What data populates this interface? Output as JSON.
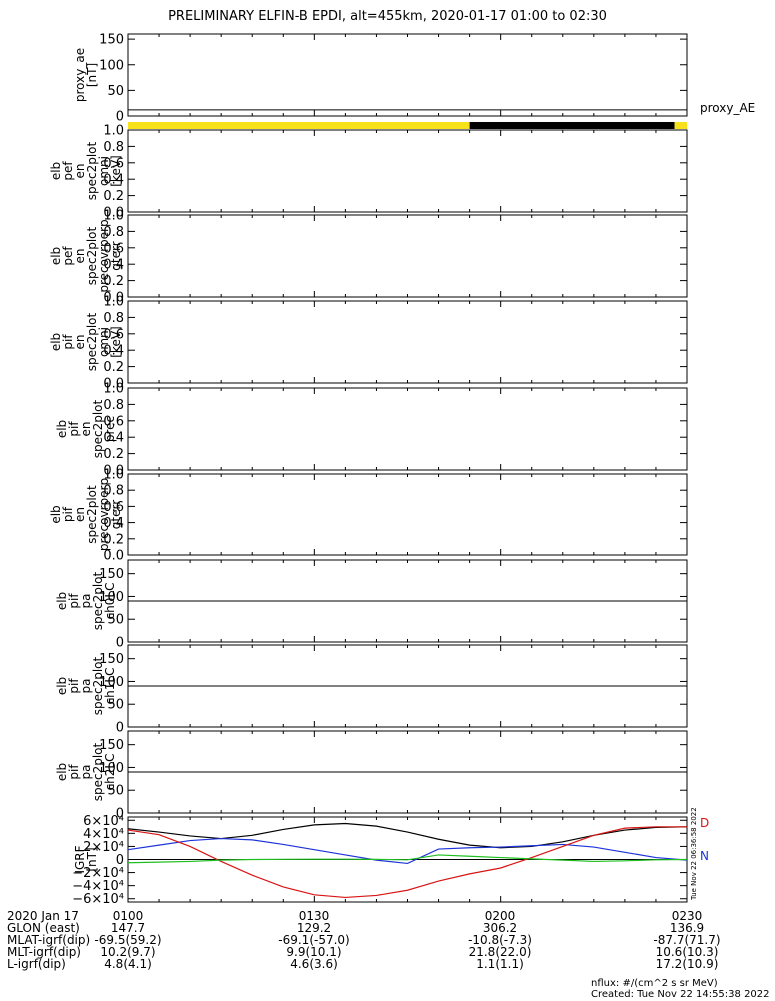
{
  "title": "PRELIMINARY ELFIN-B EPDI, alt=455km, 2020-01-17 01:00 to 02:30",
  "panels": [
    {
      "id": "proxy_ae",
      "ylabel": [
        "proxy_ae",
        "[nT]"
      ],
      "ticks": [
        "150",
        "100",
        "50",
        "0"
      ],
      "right_label": "proxy_AE"
    },
    {
      "id": "pef_omni",
      "ylabel": [
        "elb",
        "pef",
        "en",
        "spec2plot",
        "omni",
        "[keV]"
      ],
      "ticks": [
        "1.0",
        "0.8",
        "0.6",
        "0.4",
        "0.2",
        "0.0"
      ]
    },
    {
      "id": "pef_precovrperp",
      "ylabel": [
        "elb",
        "pef",
        "en",
        "spec2plot",
        "precovrperp",
        "gterr"
      ],
      "ticks": [
        "1.0",
        "0.8",
        "0.6",
        "0.4",
        "0.2",
        "0.0"
      ]
    },
    {
      "id": "pif_omni",
      "ylabel": [
        "elb",
        "pif",
        "en",
        "spec2plot",
        "omni",
        "[keV]"
      ],
      "ticks": [
        "1.0",
        "0.8",
        "0.6",
        "0.4",
        "0.2",
        "0.0"
      ]
    },
    {
      "id": "pif_prec",
      "ylabel": [
        "elb",
        "pif",
        "en",
        "spec2plot",
        "prec"
      ],
      "ticks": [
        "1.0",
        "0.8",
        "0.6",
        "0.4",
        "0.2",
        "0.0"
      ]
    },
    {
      "id": "pif_precovrperp",
      "ylabel": [
        "elb",
        "pif",
        "en",
        "spec2plot",
        "precovrperp",
        "gterr"
      ],
      "ticks": [
        "1.0",
        "0.8",
        "0.6",
        "0.4",
        "0.2",
        "0.0"
      ]
    },
    {
      "id": "pa_ch0",
      "ylabel": [
        "elb",
        "pif",
        "pa",
        "spec2plot",
        "ch0LC"
      ],
      "ticks": [
        "150",
        "100",
        "50",
        "0"
      ]
    },
    {
      "id": "pa_ch1",
      "ylabel": [
        "elb",
        "pif",
        "pa",
        "spec2plot",
        "ch1LC"
      ],
      "ticks": [
        "150",
        "100",
        "50",
        "0"
      ]
    },
    {
      "id": "pa_ch2",
      "ylabel": [
        "elb",
        "pif",
        "pa",
        "spec2plot",
        "ch2LC"
      ],
      "ticks": [
        "150",
        "100",
        "50",
        "0"
      ]
    },
    {
      "id": "igrf",
      "ylabel": [
        "IGRF",
        "[nT]"
      ],
      "ticks": [
        "6×10⁴",
        "4×10⁴",
        "2×10⁴",
        "0",
        "−2×10⁴",
        "−4×10⁴",
        "−6×10⁴"
      ],
      "right_labels": [
        "D",
        "N"
      ],
      "side_stamp": "Tue Nov 22 06:36:58 2022"
    }
  ],
  "colors": {
    "black": "#000000",
    "yellow": "#f7e11b",
    "red": "#d81414",
    "blue": "#1c33d8",
    "green": "#1fbf1f"
  },
  "chart_data": [
    {
      "type": "line",
      "panel": "proxy_ae",
      "ylim": [
        0,
        160
      ],
      "x": [
        "01:00",
        "02:30"
      ],
      "values": [
        12,
        12
      ],
      "flag_bar": [
        {
          "from": "01:00",
          "to": "01:55",
          "color": "yellow"
        },
        {
          "from": "01:55",
          "to": "02:28",
          "color": "black"
        },
        {
          "from": "02:28",
          "to": "02:30",
          "color": "yellow"
        }
      ]
    },
    {
      "type": "line",
      "panel": "pa_ch0",
      "ylim": [
        0,
        180
      ],
      "x": [
        "01:00",
        "02:30"
      ],
      "values": [
        90,
        90
      ]
    },
    {
      "type": "line",
      "panel": "pa_ch1",
      "ylim": [
        0,
        180
      ],
      "x": [
        "01:00",
        "02:30"
      ],
      "values": [
        90,
        90
      ]
    },
    {
      "type": "line",
      "panel": "pa_ch2",
      "ylim": [
        0,
        180
      ],
      "x": [
        "01:00",
        "02:30"
      ],
      "values": [
        90,
        90
      ]
    },
    {
      "type": "line",
      "panel": "igrf",
      "ylim": [
        -65000,
        65000
      ],
      "x": [
        0,
        5,
        10,
        15,
        20,
        25,
        30,
        35,
        40,
        45,
        50,
        55,
        60,
        65,
        70,
        75,
        80,
        85,
        90
      ],
      "series": [
        {
          "color": "black",
          "values": [
            47000,
            42000,
            36000,
            32000,
            37000,
            46000,
            53000,
            55000,
            51000,
            42000,
            31000,
            22000,
            18000,
            20000,
            27000,
            37000,
            45000,
            49000,
            50000
          ]
        },
        {
          "color": "blue",
          "values": [
            15000,
            22000,
            29000,
            32000,
            30000,
            23000,
            15000,
            7000,
            -1000,
            -6000,
            16000,
            18000,
            19000,
            21000,
            23000,
            19000,
            11000,
            3000,
            -1000
          ]
        },
        {
          "color": "red",
          "values": [
            45000,
            38000,
            20000,
            -3000,
            -24000,
            -42000,
            -54000,
            -58000,
            -55000,
            -47000,
            -33000,
            -22000,
            -13000,
            3000,
            20000,
            37000,
            48000,
            50000,
            50000
          ]
        },
        {
          "color": "green",
          "values": [
            -5000,
            -4000,
            -3000,
            -1000,
            0,
            300,
            500,
            500,
            200,
            -500,
            7000,
            5000,
            3000,
            1000,
            -1000,
            -3000,
            -2000,
            -500,
            0
          ]
        }
      ]
    }
  ],
  "xaxis": {
    "labels": [
      "2020 Jan 17",
      "GLON (east)",
      "MLAT-igrf(dip)",
      "MLT-igrf(dip)",
      "L-igrf(dip)"
    ],
    "columns": [
      {
        "vals": [
          "0100",
          "147.7",
          "-69.5(59.2)",
          "10.2(9.7)",
          "4.8(4.1)"
        ]
      },
      {
        "vals": [
          "0130",
          "129.2",
          "-69.1(-57.0)",
          "9.9(10.1)",
          "4.6(3.6)"
        ]
      },
      {
        "vals": [
          "0200",
          "306.2",
          "-10.8(-7.3)",
          "21.8(22.0)",
          "1.1(1.1)"
        ]
      },
      {
        "vals": [
          "0230",
          "136.9",
          "-87.7(71.7)",
          "10.6(10.3)",
          "17.2(10.9)"
        ]
      }
    ]
  },
  "footer": {
    "units": "nflux: #/(cm^2 s sr MeV)",
    "created": "Created: Tue Nov 22 14:55:38 2022"
  }
}
